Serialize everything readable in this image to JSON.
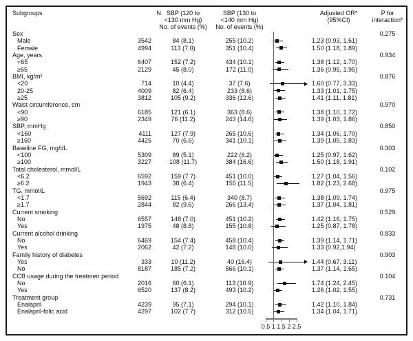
{
  "header": {
    "subgroups": "Subgroups",
    "n": "N",
    "col1_l1": "SBP (120 to",
    "col1_l2": "<130 mm Hg)",
    "col1_l3": "No. of events (%)",
    "col2_l1": "SBP (130 to",
    "col2_l2": "<140 mm Hg)",
    "col2_l3": "No. of events (%)",
    "or_l1": "Adjusted OR*",
    "or_l2": "(95%CI)",
    "p_l1": "P for",
    "p_l2": "interaction*"
  },
  "chart_data": {
    "type": "forest",
    "title": "Subgroup forest plot of adjusted OR (95% CI), SBP 130 to <140 mm Hg vs SBP 120 to <130 mm Hg",
    "x_axis": {
      "xlim": [
        0.5,
        2.5
      ],
      "ticks": [
        0.5,
        1,
        1.5,
        2,
        2.5
      ],
      "tick_labels": [
        "0.5",
        "1",
        "1.5",
        "2",
        "2.5"
      ],
      "reference_line": 1
    },
    "rows": [
      {
        "t": "g",
        "label": "Sex",
        "p": "0.275"
      },
      {
        "t": "i",
        "label": "Male",
        "n": "3542",
        "e1": "84 (8.1)",
        "e2": "255 (10.2)",
        "or": 1.23,
        "lo": 0.93,
        "hi": 1.61,
        "ci": "1.23 (0.93, 1.61)"
      },
      {
        "t": "i",
        "label": "Female",
        "n": "4994",
        "e1": "113 (7.0)",
        "e2": "351 (10.4)",
        "or": 1.5,
        "lo": 1.18,
        "hi": 1.89,
        "ci": "1.50 (1.18, 1.89)"
      },
      {
        "t": "g",
        "label": "Age, years",
        "p": "0.934"
      },
      {
        "t": "i",
        "label": "<65",
        "n": "6407",
        "e1": "152 (7.2)",
        "e2": "434 (10.1)",
        "or": 1.38,
        "lo": 1.12,
        "hi": 1.7,
        "ci": "1.38 (1.12, 1.70)"
      },
      {
        "t": "i",
        "label": "≥65",
        "n": "2129",
        "e1": "45 (8.0)",
        "e2": "172 (11.0)",
        "or": 1.36,
        "lo": 0.95,
        "hi": 1.95,
        "ci": "1.36 (0.95, 1.95)"
      },
      {
        "t": "g",
        "label": "BMI, kg/m²",
        "p": "0.876"
      },
      {
        "t": "i",
        "label": "<20",
        "n": "714",
        "e1": "10 (4.4)",
        "e2": "37 (7.6)",
        "or": 1.6,
        "lo": 0.77,
        "hi": 3.33,
        "arrow": true,
        "ci": "1.60 (0.77, 3.33)"
      },
      {
        "t": "i",
        "label": "20-25",
        "n": "4009",
        "e1": "82 (6.4)",
        "e2": "233 (8.6)",
        "or": 1.33,
        "lo": 1.01,
        "hi": 1.75,
        "ci": "1.33 (1.01, 1.75)"
      },
      {
        "t": "i",
        "label": "≥25",
        "n": "3812",
        "e1": "105 (9.2)",
        "e2": "336 (12.6)",
        "or": 1.41,
        "lo": 1.11,
        "hi": 1.81,
        "ci": "1.41 (1.11, 1.81)"
      },
      {
        "t": "g",
        "label": "Waist circumference, cm",
        "p": "0.970"
      },
      {
        "t": "i",
        "label": "<90",
        "n": "6185",
        "e1": "121 (6.1)",
        "e2": "363 (8.6)",
        "or": 1.38,
        "lo": 1.1,
        "hi": 1.72,
        "ci": "1.38 (1.10, 1.72)"
      },
      {
        "t": "i",
        "label": "≥90",
        "n": "2349",
        "e1": "76 (11.2)",
        "e2": "243 (14.6)",
        "or": 1.39,
        "lo": 1.03,
        "hi": 1.86,
        "ci": "1.39 (1.03, 1.86)"
      },
      {
        "t": "g",
        "label": "SBP, mmHg",
        "p": "0.850"
      },
      {
        "t": "i",
        "label": "<160",
        "n": "4111",
        "e1": "127 (7.9)",
        "e2": "265 (10.6)",
        "or": 1.34,
        "lo": 1.06,
        "hi": 1.7,
        "ci": "1.34 (1.06, 1.70)"
      },
      {
        "t": "i",
        "label": "≥160",
        "n": "4425",
        "e1": "70 (6.6)",
        "e2": "341 (10.1)",
        "or": 1.39,
        "lo": 1.05,
        "hi": 1.83,
        "ci": "1.39 (1.05, 1.83)"
      },
      {
        "t": "g",
        "label": "Baseline FG, mg/dL",
        "p": "0.303"
      },
      {
        "t": "i",
        "label": "<100",
        "n": "5309",
        "e1": "89 (5.1)",
        "e2": "222 (6.2)",
        "or": 1.25,
        "lo": 0.97,
        "hi": 1.62,
        "ci": "1.25 (0.97, 1.62)"
      },
      {
        "t": "i",
        "label": "≥100",
        "n": "3227",
        "e1": "108 (11.7)",
        "e2": "384 (16.6)",
        "or": 1.5,
        "lo": 1.18,
        "hi": 1.91,
        "ci": "1.50 (1.18, 1.91)"
      },
      {
        "t": "g",
        "label": "Total cholesterol, mmol/L",
        "p": "0.102"
      },
      {
        "t": "i",
        "label": "<6.2",
        "n": "6592",
        "e1": "159 (7.7)",
        "e2": "451 (10.0)",
        "or": 1.27,
        "lo": 1.04,
        "hi": 1.56,
        "ci": "1.27 (1.04, 1.56)"
      },
      {
        "t": "i",
        "label": "≥6.2",
        "n": "1943",
        "e1": "38 (6.4)",
        "e2": "155 (11.5)",
        "or": 1.82,
        "lo": 1.23,
        "hi": 2.68,
        "ci": "1.82 (1.23, 2.68)"
      },
      {
        "t": "g",
        "label": "TG, mmol/L",
        "p": "0.975"
      },
      {
        "t": "i",
        "label": "<1.7",
        "n": "5692",
        "e1": "115 (6.4)",
        "e2": "340 (8.7)",
        "or": 1.38,
        "lo": 1.09,
        "hi": 1.74,
        "ci": "1.38 (1.09, 1.74)"
      },
      {
        "t": "i",
        "label": "≥1.7",
        "n": "2844",
        "e1": "82 (9.6)",
        "e2": "266 (13.4)",
        "or": 1.37,
        "lo": 1.04,
        "hi": 1.81,
        "ci": "1.37 (1.04, 1.81)"
      },
      {
        "t": "g",
        "label": "Current smoking",
        "p": "0.529"
      },
      {
        "t": "i",
        "label": "No",
        "n": "6557",
        "e1": "148 (7.0)",
        "e2": "451 (10.2)",
        "or": 1.42,
        "lo": 1.16,
        "hi": 1.75,
        "ci": "1.42 (1.16, 1.75)"
      },
      {
        "t": "i",
        "label": "Yes",
        "n": "1975",
        "e1": "48 (8.8)",
        "e2": "155 (10.8)",
        "or": 1.25,
        "lo": 0.87,
        "hi": 1.78,
        "ci": "1.25 (0.87, 1.78)"
      },
      {
        "t": "g",
        "label": "Current alcohol drinking",
        "p": "0.833"
      },
      {
        "t": "i",
        "label": "No",
        "n": "6469",
        "e1": "154 (7.4)",
        "e2": "458 (10.4)",
        "or": 1.39,
        "lo": 1.14,
        "hi": 1.71,
        "ci": "1.39 (1.14, 1.71)"
      },
      {
        "t": "i",
        "label": "Yes",
        "n": "2062",
        "e1": "42 (7.2)",
        "e2": "148 (10.0)",
        "or": 1.33,
        "lo": 0.92,
        "hi": 1.94,
        "ci": "1.33 (0.92,1.94)"
      },
      {
        "t": "g",
        "label": "Family history of diabetes",
        "p": "0.903"
      },
      {
        "t": "i",
        "label": "Yes",
        "n": "333",
        "e1": "10 (11.2)",
        "e2": "40 (16.4)",
        "or": 1.44,
        "lo": 0.67,
        "hi": 3.11,
        "arrow": true,
        "ci": "1.44 (0.67, 3.11)"
      },
      {
        "t": "i",
        "label": "No",
        "n": "8187",
        "e1": "185 (7.2)",
        "e2": "566 (10.1)",
        "or": 1.37,
        "lo": 1.14,
        "hi": 1.65,
        "ci": "1.37 (1.14, 1.65)"
      },
      {
        "t": "g",
        "label": "CCB usage during the treatmen period",
        "p": "0.104"
      },
      {
        "t": "i",
        "label": "No",
        "n": "2016",
        "e1": "60 (6.1)",
        "e2": "113 (10.9)",
        "or": 1.74,
        "lo": 1.24,
        "hi": 2.45,
        "ci": "1.74 (1.24, 2.45)"
      },
      {
        "t": "i",
        "label": "Yes",
        "n": "6520",
        "e1": "137 (8.2)",
        "e2": "493 (10.2)",
        "or": 1.26,
        "lo": 1.02,
        "hi": 1.55,
        "ci": "1.26 (1.02, 1.55)"
      },
      {
        "t": "g",
        "label": "Treatment group",
        "p": "0.731"
      },
      {
        "t": "i",
        "label": "Enalapril",
        "n": "4239",
        "e1": "95 (7.1)",
        "e2": "294 (10.1)",
        "or": 1.42,
        "lo": 1.1,
        "hi": 1.84,
        "ci": "1.42 (1.10, 1.84)"
      },
      {
        "t": "i",
        "label": "Enalapril-folic acid",
        "n": "4297",
        "e1": "102 (7.7)",
        "e2": "312 (10.5)",
        "or": 1.34,
        "lo": 1.04,
        "hi": 1.71,
        "ci": "1.34 (1.04, 1.71)"
      }
    ]
  }
}
